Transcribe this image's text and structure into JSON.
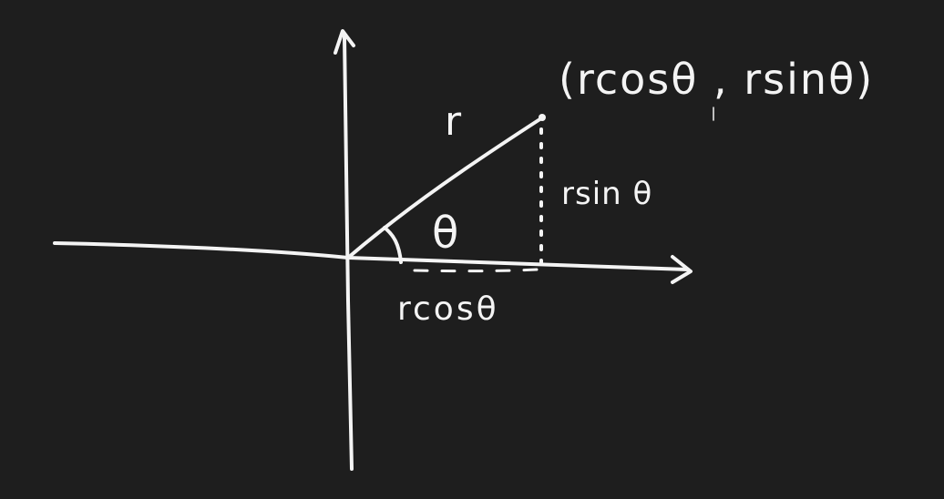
{
  "diagram": {
    "labels": {
      "point": "(rcosθ , rsinθ)",
      "radius": "r",
      "angle": "θ",
      "vertical_leg": "rsin θ",
      "horizontal_leg": "rcosθ"
    },
    "colors": {
      "background": "#1e1e1e",
      "ink": "#f4f4f4"
    }
  }
}
